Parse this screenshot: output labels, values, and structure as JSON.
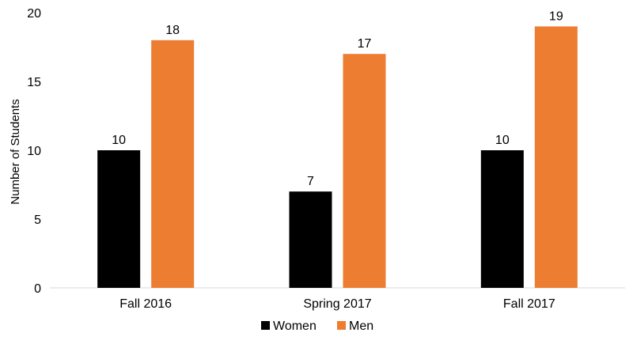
{
  "chart_data": {
    "type": "bar",
    "title": "",
    "xlabel": "",
    "ylabel": "Number of Students",
    "ylim": [
      0,
      20
    ],
    "yticks": [
      0,
      5,
      10,
      15,
      20
    ],
    "grid": false,
    "legend_position": "bottom",
    "categories": [
      "Fall 2016",
      "Spring 2017",
      "Fall 2017"
    ],
    "series": [
      {
        "name": "Women",
        "color": "#000000",
        "values": [
          10,
          7,
          10
        ]
      },
      {
        "name": "Men",
        "color": "#ED7D31",
        "values": [
          18,
          17,
          19
        ]
      }
    ]
  }
}
